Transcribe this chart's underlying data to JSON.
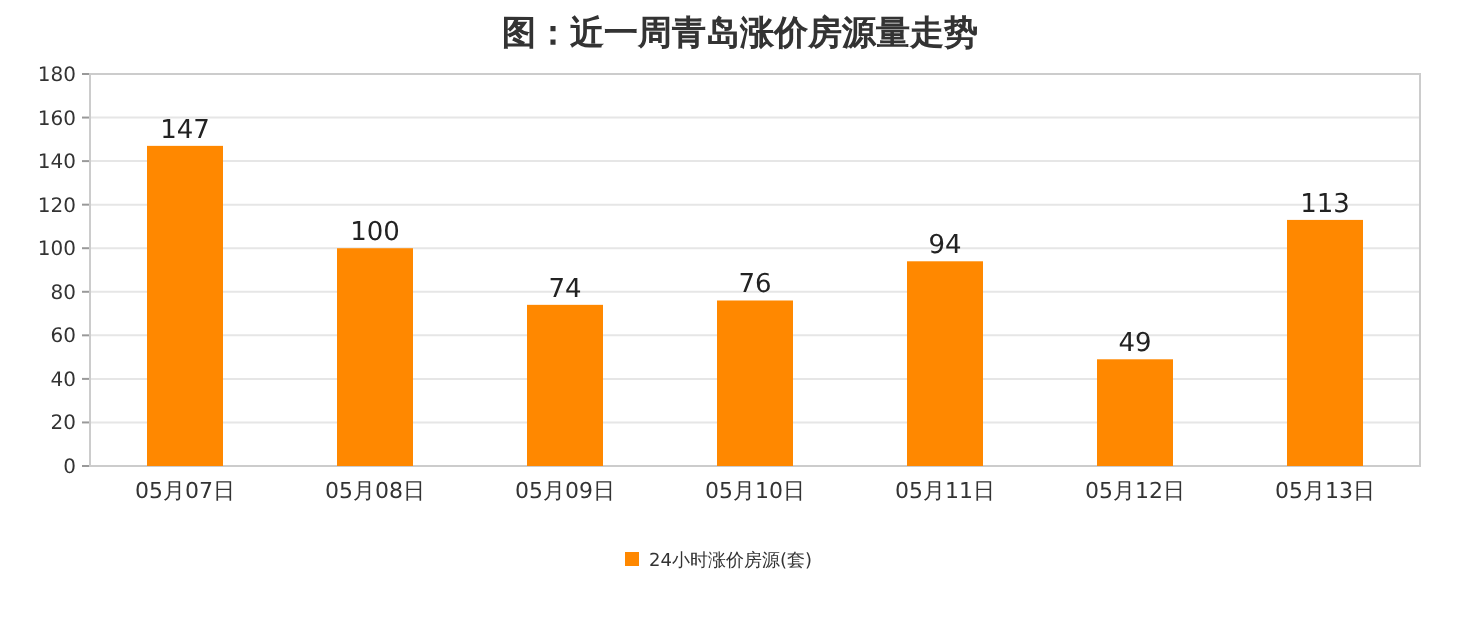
{
  "chart_data": {
    "type": "bar",
    "title": "图：近一周青岛涨价房源量走势",
    "categories": [
      "05月07日",
      "05月08日",
      "05月09日",
      "05月10日",
      "05月11日",
      "05月12日",
      "05月13日"
    ],
    "series": [
      {
        "name": "24小时涨价房源(套)",
        "color": "#ff8800",
        "values": [
          147,
          100,
          74,
          76,
          94,
          49,
          113
        ]
      }
    ],
    "ylim": [
      0,
      180
    ],
    "yticks": [
      0,
      20,
      40,
      60,
      80,
      100,
      120,
      140,
      160,
      180
    ],
    "grid": "y",
    "data_labels": true,
    "legend": "bottom"
  }
}
